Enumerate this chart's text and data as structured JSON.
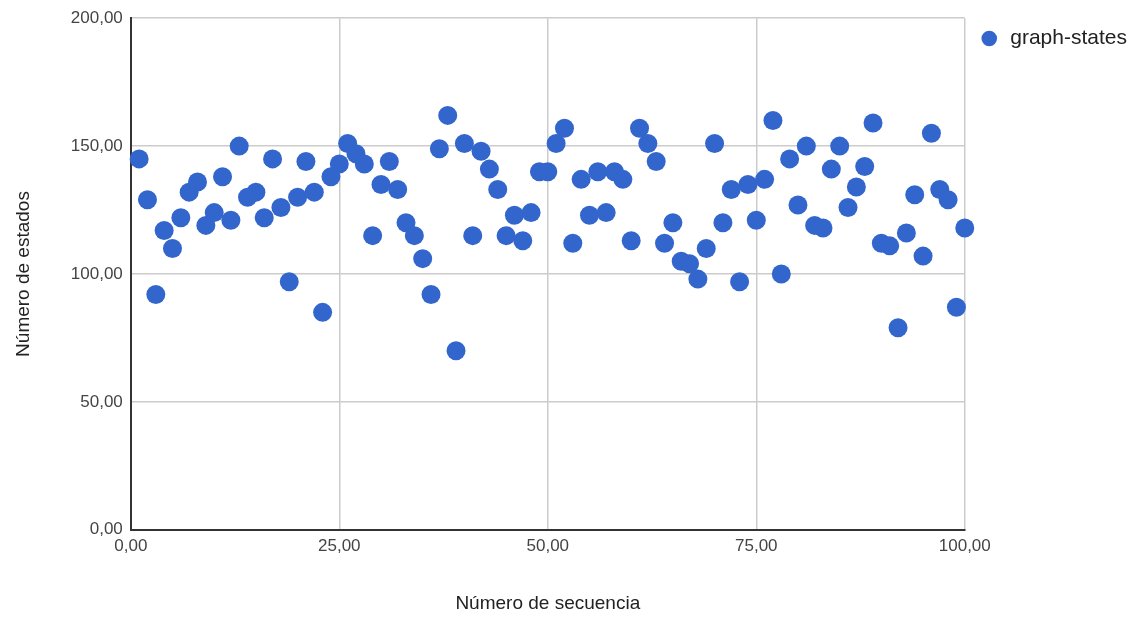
{
  "chart_data": {
    "type": "scatter",
    "xlabel": "Número de secuencia",
    "ylabel": "Número de estados",
    "x": [
      1,
      2,
      3,
      4,
      5,
      6,
      7,
      8,
      9,
      10,
      11,
      12,
      13,
      14,
      15,
      16,
      17,
      18,
      19,
      20,
      21,
      22,
      23,
      24,
      25,
      26,
      27,
      28,
      29,
      30,
      31,
      32,
      33,
      34,
      35,
      36,
      37,
      38,
      39,
      40,
      41,
      42,
      43,
      44,
      45,
      46,
      47,
      48,
      49,
      50,
      51,
      52,
      53,
      54,
      55,
      56,
      57,
      58,
      59,
      60,
      61,
      62,
      63,
      64,
      65,
      66,
      67,
      68,
      69,
      70,
      71,
      72,
      73,
      74,
      75,
      76,
      77,
      78,
      79,
      80,
      81,
      82,
      83,
      84,
      85,
      86,
      87,
      88,
      89,
      90,
      91,
      92,
      93,
      94,
      95,
      96,
      97,
      98,
      99,
      100
    ],
    "series": [
      {
        "name": "graph-states",
        "color": "#3366cc",
        "values": [
          145,
          129,
          92,
          117,
          110,
          122,
          132,
          136,
          119,
          124,
          138,
          121,
          150,
          130,
          132,
          122,
          145,
          126,
          97,
          130,
          144,
          132,
          85,
          138,
          143,
          151,
          147,
          143,
          115,
          135,
          144,
          133,
          120,
          115,
          106,
          92,
          149,
          162,
          70,
          151,
          115,
          148,
          141,
          133,
          115,
          123,
          113,
          124,
          140,
          140,
          151,
          157,
          112,
          137,
          123,
          140,
          124,
          140,
          137,
          113,
          157,
          151,
          144,
          112,
          120,
          105,
          104,
          98,
          110,
          151,
          120,
          133,
          97,
          135,
          121,
          137,
          160,
          100,
          145,
          127,
          150,
          119,
          118,
          141,
          150,
          126,
          134,
          142,
          159,
          112,
          111,
          79,
          116,
          131,
          107,
          155,
          133,
          129,
          87,
          118
        ]
      }
    ],
    "xlim": [
      0,
      100
    ],
    "xticks": [
      {
        "value": 0,
        "label": "0,00"
      },
      {
        "value": 25,
        "label": "25,00"
      },
      {
        "value": 50,
        "label": "50,00"
      },
      {
        "value": 75,
        "label": "75,00"
      },
      {
        "value": 100,
        "label": "100,00"
      }
    ],
    "ylim": [
      0,
      200
    ],
    "yticks": [
      {
        "value": 0,
        "label": "0,00"
      },
      {
        "value": 50,
        "label": "50,00"
      },
      {
        "value": 100,
        "label": "100,00"
      },
      {
        "value": 150,
        "label": "150,00"
      },
      {
        "value": 200,
        "label": "200,00"
      }
    ],
    "grid": true,
    "legend": "top right",
    "marker": "circle"
  }
}
